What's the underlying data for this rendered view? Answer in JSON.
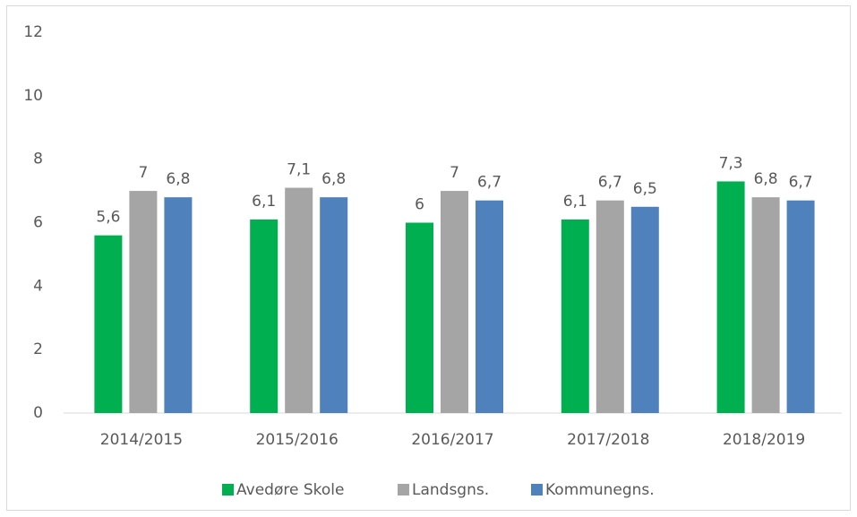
{
  "chart_data": {
    "type": "bar",
    "categories": [
      "2014/2015",
      "2015/2016",
      "2016/2017",
      "2017/2018",
      "2018/2019"
    ],
    "series": [
      {
        "name": "Avedøre Skole",
        "color": "#00b050",
        "values": [
          5.6,
          6.1,
          6,
          6.1,
          7.3
        ],
        "value_labels": [
          "5,6",
          "6,1",
          "6",
          "6,1",
          "7,3"
        ]
      },
      {
        "name": "Landsgns.",
        "color": "#a5a5a5",
        "values": [
          7,
          7.1,
          7,
          6.7,
          6.8
        ],
        "value_labels": [
          "7",
          "7,1",
          "7",
          "6,7",
          "6,8"
        ]
      },
      {
        "name": "Kommunegns.",
        "color": "#4f81bd",
        "values": [
          6.8,
          6.8,
          6.7,
          6.5,
          6.7
        ],
        "value_labels": [
          "6,8",
          "6,8",
          "6,7",
          "6,5",
          "6,7"
        ]
      }
    ],
    "ylim": [
      0,
      12
    ],
    "yticks": [
      0,
      2,
      4,
      6,
      8,
      10,
      12
    ],
    "grid": false,
    "legend": "bottom"
  }
}
